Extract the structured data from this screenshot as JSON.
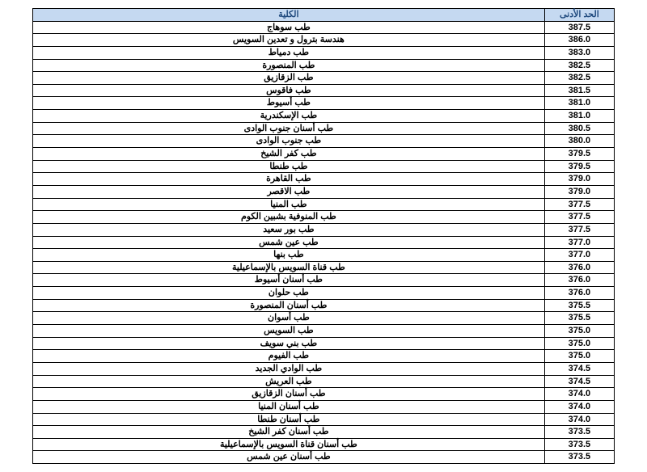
{
  "header_bg": "#c5d9f1",
  "header_color": "#1f497d",
  "columns": {
    "score": "الحد الأدنى",
    "college": "الكلية"
  },
  "rows": [
    {
      "college": "طب سوهاج",
      "score": "387.5"
    },
    {
      "college": "هندسة بترول و تعدين السويس",
      "score": "386.0"
    },
    {
      "college": "طب دمياط",
      "score": "383.0"
    },
    {
      "college": "طب المنصورة",
      "score": "382.5"
    },
    {
      "college": "طب الزقازيق",
      "score": "382.5"
    },
    {
      "college": "طب فاقوس",
      "score": "381.5"
    },
    {
      "college": "طب أسيوط",
      "score": "381.0"
    },
    {
      "college": "طب الإسكندرية",
      "score": "381.0"
    },
    {
      "college": "طب أسنان جنوب الوادى",
      "score": "380.5"
    },
    {
      "college": "طب جنوب الوادى",
      "score": "380.0"
    },
    {
      "college": "طب كفر الشيخ",
      "score": "379.5"
    },
    {
      "college": "طب طنطا",
      "score": "379.5"
    },
    {
      "college": "طب القاهرة",
      "score": "379.0"
    },
    {
      "college": "طب الاقصر",
      "score": "379.0"
    },
    {
      "college": "طب المنيا",
      "score": "377.5"
    },
    {
      "college": "طب المنوفية بشبين الكوم",
      "score": "377.5"
    },
    {
      "college": "طب بور سعيد",
      "score": "377.5"
    },
    {
      "college": "طب عين شمس",
      "score": "377.0"
    },
    {
      "college": "طب بنها",
      "score": "377.0"
    },
    {
      "college": "طب قناة السويس بالإسماعيلية",
      "score": "376.0"
    },
    {
      "college": "طب أسنان أسيوط",
      "score": "376.0"
    },
    {
      "college": "طب حلوان",
      "score": "376.0"
    },
    {
      "college": "طب أسنان المنصورة",
      "score": "375.5"
    },
    {
      "college": "طب أسوان",
      "score": "375.5"
    },
    {
      "college": "طب السويس",
      "score": "375.0"
    },
    {
      "college": "طب بني سويف",
      "score": "375.0"
    },
    {
      "college": "طب الفيوم",
      "score": "375.0"
    },
    {
      "college": "طب الوادي الجديد",
      "score": "374.5"
    },
    {
      "college": "طب العريش",
      "score": "374.5"
    },
    {
      "college": "طب أسنان الزقازيق",
      "score": "374.0"
    },
    {
      "college": "طب أسنان المنيا",
      "score": "374.0"
    },
    {
      "college": "طب أسنان طنطا",
      "score": "374.0"
    },
    {
      "college": "طب أسنان كفر الشيخ",
      "score": "373.5"
    },
    {
      "college": "طب أسنان قناة السويس بالإسماعيلية",
      "score": "373.5"
    },
    {
      "college": "طب أسنان عين شمس",
      "score": "373.5"
    }
  ]
}
